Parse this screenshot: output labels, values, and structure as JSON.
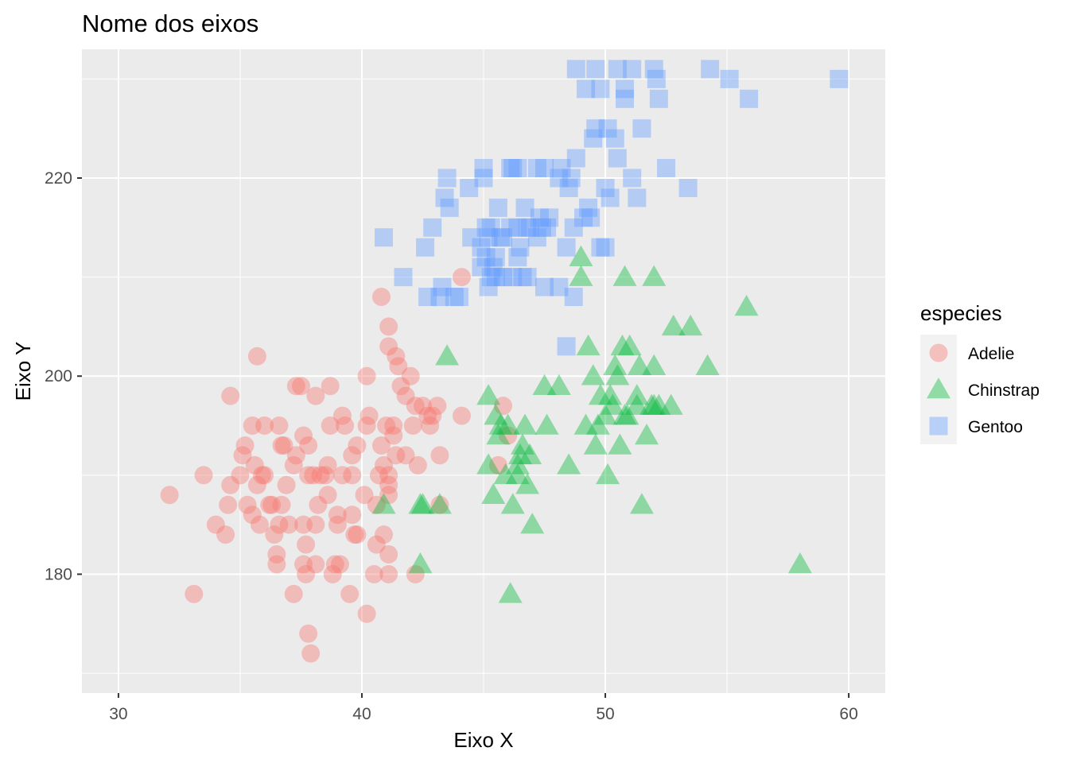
{
  "chart_data": {
    "type": "scatter",
    "title": "Nome dos eixos",
    "xlabel": "Eixo X",
    "ylabel": "Eixo Y",
    "xlim": [
      28.5,
      61.5
    ],
    "ylim": [
      168.0,
      233.0
    ],
    "x_ticks": [
      30,
      40,
      50,
      60
    ],
    "y_ticks": [
      180,
      200,
      220
    ],
    "grid": true,
    "background": "#ebebeb",
    "legend": {
      "title": "especies",
      "placement": "right",
      "entries": [
        "Adelie",
        "Chinstrap",
        "Gentoo"
      ]
    },
    "series": [
      {
        "name": "Adelie",
        "shape": "circle",
        "color": "#f8766d",
        "points": [
          [
            32.1,
            188
          ],
          [
            33.1,
            178
          ],
          [
            33.5,
            190
          ],
          [
            34.0,
            185
          ],
          [
            34.4,
            184
          ],
          [
            34.5,
            187
          ],
          [
            34.6,
            189
          ],
          [
            34.6,
            198
          ],
          [
            35.0,
            190
          ],
          [
            35.1,
            192
          ],
          [
            35.2,
            193
          ],
          [
            35.3,
            187
          ],
          [
            35.5,
            186
          ],
          [
            35.5,
            195
          ],
          [
            35.6,
            191
          ],
          [
            35.7,
            189
          ],
          [
            35.7,
            202
          ],
          [
            35.8,
            185
          ],
          [
            35.9,
            190
          ],
          [
            36.0,
            190
          ],
          [
            36.0,
            195
          ],
          [
            36.2,
            187
          ],
          [
            36.3,
            187
          ],
          [
            36.4,
            184
          ],
          [
            36.5,
            181
          ],
          [
            36.5,
            182
          ],
          [
            36.6,
            185
          ],
          [
            36.6,
            195
          ],
          [
            36.7,
            187
          ],
          [
            36.7,
            193
          ],
          [
            36.8,
            193
          ],
          [
            36.9,
            189
          ],
          [
            37.0,
            185
          ],
          [
            37.2,
            178
          ],
          [
            37.2,
            191
          ],
          [
            37.3,
            192
          ],
          [
            37.3,
            199
          ],
          [
            37.5,
            199
          ],
          [
            37.6,
            181
          ],
          [
            37.6,
            185
          ],
          [
            37.6,
            194
          ],
          [
            37.7,
            180
          ],
          [
            37.7,
            183
          ],
          [
            37.8,
            174
          ],
          [
            37.8,
            190
          ],
          [
            37.8,
            193
          ],
          [
            37.9,
            172
          ],
          [
            38.0,
            190
          ],
          [
            38.1,
            181
          ],
          [
            38.1,
            185
          ],
          [
            38.1,
            198
          ],
          [
            38.2,
            187
          ],
          [
            38.3,
            190
          ],
          [
            38.5,
            190
          ],
          [
            38.6,
            188
          ],
          [
            38.6,
            191
          ],
          [
            38.7,
            195
          ],
          [
            38.7,
            199
          ],
          [
            38.8,
            180
          ],
          [
            38.9,
            181
          ],
          [
            39.0,
            185
          ],
          [
            39.0,
            186
          ],
          [
            39.1,
            181
          ],
          [
            39.2,
            190
          ],
          [
            39.2,
            196
          ],
          [
            39.3,
            195
          ],
          [
            39.5,
            178
          ],
          [
            39.6,
            186
          ],
          [
            39.6,
            190
          ],
          [
            39.6,
            192
          ],
          [
            39.7,
            184
          ],
          [
            39.8,
            184
          ],
          [
            39.8,
            193
          ],
          [
            40.1,
            188
          ],
          [
            40.2,
            176
          ],
          [
            40.2,
            195
          ],
          [
            40.2,
            200
          ],
          [
            40.3,
            196
          ],
          [
            40.5,
            180
          ],
          [
            40.6,
            183
          ],
          [
            40.6,
            187
          ],
          [
            40.7,
            190
          ],
          [
            40.8,
            193
          ],
          [
            40.8,
            208
          ],
          [
            40.9,
            184
          ],
          [
            40.9,
            191
          ],
          [
            41.0,
            195
          ],
          [
            41.1,
            180
          ],
          [
            41.1,
            182
          ],
          [
            41.1,
            188
          ],
          [
            41.1,
            189
          ],
          [
            41.1,
            190
          ],
          [
            41.1,
            203
          ],
          [
            41.1,
            205
          ],
          [
            41.3,
            194
          ],
          [
            41.3,
            195
          ],
          [
            41.4,
            192
          ],
          [
            41.4,
            202
          ],
          [
            41.5,
            201
          ],
          [
            41.6,
            199
          ],
          [
            41.8,
            192
          ],
          [
            41.8,
            198
          ],
          [
            42.0,
            200
          ],
          [
            42.1,
            195
          ],
          [
            42.2,
            180
          ],
          [
            42.2,
            197
          ],
          [
            42.3,
            191
          ],
          [
            42.5,
            197
          ],
          [
            42.7,
            196
          ],
          [
            42.8,
            195
          ],
          [
            42.9,
            196
          ],
          [
            43.1,
            197
          ],
          [
            43.2,
            187
          ],
          [
            43.2,
            192
          ],
          [
            44.1,
            196
          ],
          [
            44.1,
            210
          ],
          [
            45.6,
            191
          ],
          [
            45.8,
            197
          ],
          [
            46.0,
            194
          ]
        ]
      },
      {
        "name": "Chinstrap",
        "shape": "triangle",
        "color": "#00ba38",
        "points": [
          [
            40.9,
            187
          ],
          [
            42.4,
            181
          ],
          [
            42.4,
            187
          ],
          [
            42.5,
            187
          ],
          [
            43.2,
            187
          ],
          [
            43.5,
            202
          ],
          [
            45.2,
            191
          ],
          [
            45.2,
            198
          ],
          [
            45.4,
            188
          ],
          [
            45.5,
            196
          ],
          [
            45.6,
            194
          ],
          [
            45.7,
            195
          ],
          [
            45.9,
            190
          ],
          [
            46.0,
            195
          ],
          [
            46.1,
            178
          ],
          [
            46.2,
            187
          ],
          [
            46.4,
            190
          ],
          [
            46.4,
            191
          ],
          [
            46.5,
            192
          ],
          [
            46.6,
            193
          ],
          [
            46.7,
            195
          ],
          [
            46.8,
            189
          ],
          [
            46.9,
            192
          ],
          [
            47.0,
            185
          ],
          [
            47.5,
            199
          ],
          [
            47.6,
            195
          ],
          [
            48.1,
            199
          ],
          [
            48.5,
            191
          ],
          [
            49.0,
            210
          ],
          [
            49.0,
            212
          ],
          [
            49.2,
            195
          ],
          [
            49.3,
            203
          ],
          [
            49.5,
            200
          ],
          [
            49.6,
            193
          ],
          [
            49.7,
            195
          ],
          [
            49.8,
            198
          ],
          [
            50.0,
            196
          ],
          [
            50.1,
            190
          ],
          [
            50.2,
            198
          ],
          [
            50.3,
            197
          ],
          [
            50.4,
            201
          ],
          [
            50.5,
            200
          ],
          [
            50.6,
            193
          ],
          [
            50.7,
            203
          ],
          [
            50.8,
            196
          ],
          [
            50.8,
            210
          ],
          [
            50.9,
            196
          ],
          [
            51.0,
            203
          ],
          [
            51.3,
            197
          ],
          [
            51.3,
            198
          ],
          [
            51.4,
            201
          ],
          [
            51.5,
            187
          ],
          [
            51.7,
            194
          ],
          [
            51.9,
            197
          ],
          [
            52.0,
            197
          ],
          [
            52.0,
            201
          ],
          [
            52.0,
            210
          ],
          [
            52.2,
            197
          ],
          [
            52.7,
            197
          ],
          [
            52.8,
            205
          ],
          [
            53.5,
            205
          ],
          [
            54.2,
            201
          ],
          [
            55.8,
            207
          ],
          [
            58.0,
            181
          ]
        ]
      },
      {
        "name": "Gentoo",
        "shape": "square",
        "color": "#619cff",
        "points": [
          [
            40.9,
            214
          ],
          [
            41.7,
            210
          ],
          [
            42.6,
            213
          ],
          [
            42.7,
            208
          ],
          [
            42.9,
            215
          ],
          [
            43.2,
            208
          ],
          [
            43.3,
            209
          ],
          [
            43.4,
            218
          ],
          [
            43.5,
            220
          ],
          [
            43.6,
            217
          ],
          [
            43.8,
            208
          ],
          [
            44.0,
            208
          ],
          [
            44.4,
            219
          ],
          [
            44.5,
            214
          ],
          [
            44.9,
            213
          ],
          [
            45.0,
            220
          ],
          [
            45.1,
            212
          ],
          [
            45.1,
            215
          ],
          [
            45.2,
            209
          ],
          [
            45.2,
            214
          ],
          [
            45.3,
            210
          ],
          [
            45.4,
            211
          ],
          [
            45.5,
            210
          ],
          [
            45.5,
            212
          ],
          [
            45.7,
            214
          ],
          [
            45.8,
            210
          ],
          [
            46.1,
            215
          ],
          [
            46.2,
            221
          ],
          [
            46.4,
            212
          ],
          [
            46.4,
            221
          ],
          [
            46.5,
            213
          ],
          [
            46.6,
            210
          ],
          [
            46.7,
            217
          ],
          [
            46.8,
            215
          ],
          [
            47.2,
            214
          ],
          [
            47.3,
            216
          ],
          [
            47.5,
            209
          ],
          [
            47.7,
            216
          ],
          [
            48.1,
            209
          ],
          [
            48.2,
            221
          ],
          [
            48.4,
            203
          ],
          [
            48.4,
            213
          ],
          [
            48.5,
            219
          ],
          [
            48.6,
            220
          ],
          [
            48.7,
            208
          ],
          [
            48.8,
            222
          ],
          [
            49.1,
            216
          ],
          [
            49.2,
            229
          ],
          [
            49.4,
            216
          ],
          [
            49.5,
            224
          ],
          [
            49.6,
            225
          ],
          [
            49.8,
            229
          ],
          [
            50.0,
            213
          ],
          [
            50.0,
            219
          ],
          [
            50.1,
            225
          ],
          [
            50.2,
            218
          ],
          [
            50.4,
            224
          ],
          [
            50.5,
            222
          ],
          [
            50.8,
            229
          ],
          [
            51.1,
            220
          ],
          [
            51.3,
            218
          ],
          [
            51.5,
            225
          ],
          [
            52.1,
            230
          ],
          [
            52.2,
            228
          ],
          [
            52.5,
            221
          ],
          [
            53.4,
            219
          ],
          [
            54.3,
            231
          ],
          [
            55.1,
            230
          ],
          [
            55.9,
            228
          ],
          [
            59.6,
            230
          ],
          [
            47.4,
            215
          ],
          [
            48.1,
            220
          ],
          [
            49.3,
            217
          ],
          [
            46.9,
            215
          ],
          [
            46.1,
            221
          ],
          [
            45.3,
            215
          ],
          [
            44.9,
            211
          ],
          [
            45.6,
            217
          ],
          [
            46.4,
            215
          ],
          [
            47.5,
            221
          ],
          [
            48.8,
            231
          ],
          [
            49.6,
            231
          ],
          [
            50.5,
            231
          ],
          [
            51.1,
            231
          ],
          [
            52.0,
            231
          ],
          [
            50.8,
            228
          ],
          [
            47.2,
            221
          ],
          [
            46.8,
            210
          ],
          [
            45.0,
            221
          ],
          [
            45.8,
            214
          ],
          [
            46.2,
            210
          ],
          [
            48.7,
            215
          ],
          [
            49.8,
            213
          ],
          [
            47.6,
            215
          ]
        ]
      }
    ]
  }
}
